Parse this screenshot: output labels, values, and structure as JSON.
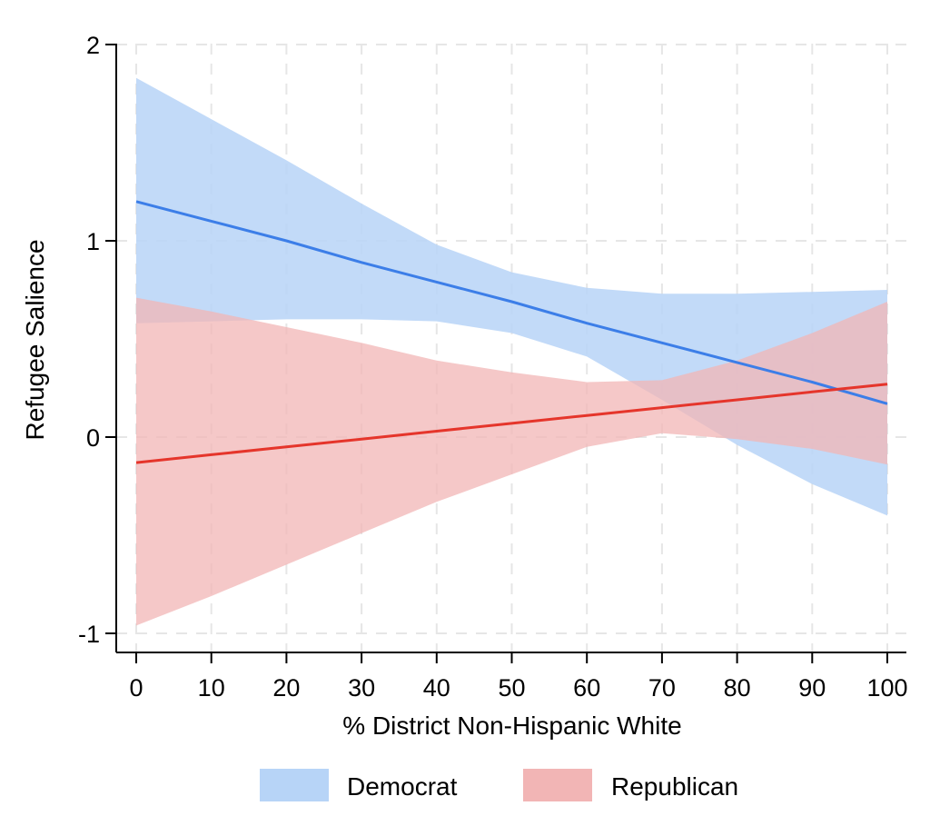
{
  "chart_data": {
    "type": "line",
    "xlabel": "% District Non-Hispanic White",
    "ylabel": "Refugee Salience",
    "xlim": [
      0,
      100
    ],
    "ylim": [
      -1,
      2
    ],
    "xticks": [
      0,
      10,
      20,
      30,
      40,
      50,
      60,
      70,
      80,
      90,
      100
    ],
    "yticks": [
      -1,
      0,
      1,
      2
    ],
    "x_tick_labels": [
      "0",
      "10",
      "20",
      "30",
      "40",
      "50",
      "60",
      "70",
      "80",
      "90",
      "100"
    ],
    "y_tick_labels": [
      "-1",
      "0",
      "1",
      "2"
    ],
    "grid": true,
    "legend_position": "bottom",
    "series": [
      {
        "name": "Democrat",
        "line_color": "#3c7ee8",
        "band_color": "#b7d4f7",
        "x": [
          0,
          10,
          20,
          30,
          40,
          50,
          60,
          70,
          80,
          90,
          100
        ],
        "y": [
          1.2,
          1.1,
          1.0,
          0.89,
          0.79,
          0.69,
          0.58,
          0.48,
          0.38,
          0.28,
          0.17
        ],
        "lower": [
          0.58,
          0.59,
          0.6,
          0.6,
          0.59,
          0.53,
          0.41,
          0.19,
          -0.04,
          -0.24,
          -0.4
        ],
        "upper": [
          1.83,
          1.62,
          1.41,
          1.19,
          0.98,
          0.84,
          0.76,
          0.73,
          0.73,
          0.74,
          0.75
        ]
      },
      {
        "name": "Republican",
        "line_color": "#e5352b",
        "band_color": "#f2b5b5",
        "x": [
          0,
          10,
          20,
          30,
          40,
          50,
          60,
          70,
          80,
          90,
          100
        ],
        "y": [
          -0.13,
          -0.09,
          -0.05,
          -0.01,
          0.03,
          0.07,
          0.11,
          0.15,
          0.19,
          0.23,
          0.27
        ],
        "lower": [
          -0.96,
          -0.81,
          -0.65,
          -0.49,
          -0.33,
          -0.19,
          -0.05,
          0.02,
          -0.01,
          -0.06,
          -0.14
        ],
        "upper": [
          0.71,
          0.64,
          0.56,
          0.48,
          0.39,
          0.33,
          0.28,
          0.29,
          0.39,
          0.53,
          0.69
        ]
      }
    ]
  }
}
